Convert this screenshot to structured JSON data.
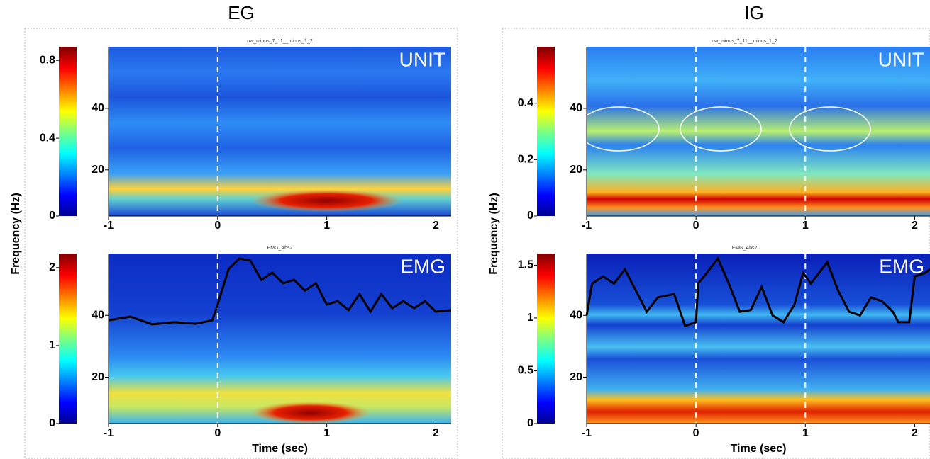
{
  "chart_data": [
    {
      "type": "spectrogram",
      "column_title": "EG",
      "title": "nw_minus_7_11__minus_1_2",
      "label": "UNIT",
      "ylabel": "Frequency (Hz)",
      "xlim": [
        -1,
        2.14
      ],
      "xticks": [
        -1,
        0,
        1,
        2
      ],
      "ylim": [
        5,
        60
      ],
      "yticks": [
        20,
        40
      ],
      "colorbar": {
        "lim": [
          0,
          0.87
        ],
        "ticks": [
          0,
          0.4,
          0.8
        ]
      },
      "markers": [
        0
      ]
    },
    {
      "type": "spectrogram",
      "title": "EMG_Abs2",
      "label": "EMG",
      "xlabel": "Time (sec)",
      "xlim": [
        -1,
        2.14
      ],
      "xticks": [
        -1,
        0,
        1,
        2
      ],
      "ylim": [
        5,
        60
      ],
      "yticks": [
        20,
        40
      ],
      "colorbar": {
        "lim": [
          0,
          2.18
        ],
        "ticks": [
          0,
          1,
          2
        ]
      },
      "markers": [
        0
      ],
      "line": {
        "color": "#000000",
        "x": [
          -1,
          -0.8,
          -0.6,
          -0.4,
          -0.2,
          -0.05,
          0,
          0.1,
          0.2,
          0.3,
          0.4,
          0.5,
          0.6,
          0.7,
          0.8,
          0.9,
          1.0,
          1.1,
          1.2,
          1.3,
          1.4,
          1.5,
          1.6,
          1.7,
          1.8,
          1.9,
          2.0,
          2.14
        ],
        "values": [
          38.4,
          39.6,
          37.1,
          37.8,
          37.3,
          38.4,
          43.5,
          55,
          58.4,
          57.7,
          51.5,
          53.8,
          50.4,
          51.5,
          48,
          50.4,
          43.5,
          44.6,
          41.7,
          46.9,
          41.2,
          46.9,
          42.3,
          44.6,
          42.3,
          44.6,
          41.2,
          41.7
        ]
      }
    },
    {
      "type": "spectrogram",
      "column_title": "IG",
      "title": "nw_minus_7_11__minus_1_2",
      "label": "UNIT",
      "ylabel": "Frequency (Hz)",
      "xlim": [
        -1,
        2.14
      ],
      "xticks": [
        -1,
        0,
        1,
        2
      ],
      "ylim": [
        5,
        60
      ],
      "yticks": [
        20,
        40
      ],
      "colorbar": {
        "lim": [
          0,
          0.6
        ],
        "ticks": [
          0,
          0.2,
          0.4
        ]
      },
      "markers": [
        0,
        1
      ]
    },
    {
      "type": "spectrogram",
      "title": "EMG_Abs2",
      "label": "EMG",
      "xlabel": "Time (sec)",
      "xlim": [
        -1,
        2.14
      ],
      "xticks": [
        -1,
        0,
        1,
        2
      ],
      "ylim": [
        5,
        60
      ],
      "yticks": [
        20,
        40
      ],
      "colorbar": {
        "lim": [
          0,
          1.61
        ],
        "ticks": [
          0,
          0.5,
          1,
          1.5
        ]
      },
      "markers": [
        0,
        1
      ],
      "line": {
        "color": "#000000",
        "x": [
          -1,
          -0.95,
          -0.85,
          -0.75,
          -0.65,
          -0.55,
          -0.45,
          -0.35,
          -0.2,
          -0.1,
          0,
          0.02,
          0.1,
          0.2,
          0.3,
          0.4,
          0.5,
          0.6,
          0.7,
          0.8,
          0.9,
          0.98,
          1.05,
          1.2,
          1.3,
          1.4,
          1.5,
          1.6,
          1.7,
          1.8,
          1.85,
          1.95,
          2.0,
          2.1,
          2.14
        ],
        "values": [
          40,
          50.3,
          52.6,
          50.3,
          54.9,
          48,
          41.2,
          45.8,
          46.9,
          36.6,
          37.8,
          50.3,
          53.8,
          58.4,
          50.3,
          41.2,
          41.7,
          49.2,
          40,
          37.8,
          43.5,
          53.8,
          50.3,
          57.2,
          48,
          41.2,
          40,
          45.8,
          44.6,
          41.2,
          37.8,
          37.8,
          52.6,
          53.8,
          55
        ]
      }
    }
  ]
}
